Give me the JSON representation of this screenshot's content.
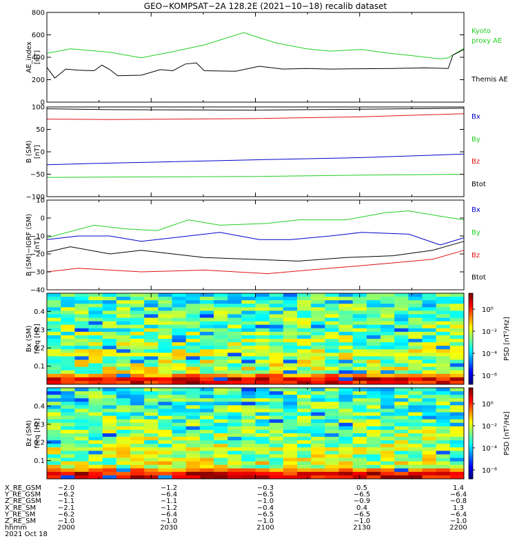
{
  "title": "GEO−KOMPSAT−2A 128.2E (2021−10−18) recalib dataset",
  "colors": {
    "kyoto": "#1fd11f",
    "themis": "#000000",
    "bx": "#0000c8",
    "by": "#1fd11f",
    "bz": "#e01010",
    "btot": "#000000"
  },
  "chart_data": [
    {
      "type": "line",
      "ylabel": [
        "AE_index",
        "[nT]"
      ],
      "ylim": [
        0,
        800
      ],
      "yticks": [
        "800",
        "600",
        "400",
        "200",
        "0"
      ],
      "x": [
        "2000",
        "2030",
        "2100",
        "2130",
        "2200"
      ],
      "series": [
        {
          "name": "Kyoto proxy AE",
          "label_lines": [
            "Kyoto",
            "proxy AE"
          ],
          "color": "#1fd11f",
          "points": [
            [
              0,
              435
            ],
            [
              15,
              475
            ],
            [
              40,
              445
            ],
            [
              60,
              395
            ],
            [
              80,
              450
            ],
            [
              100,
              510
            ],
            [
              125,
              620
            ],
            [
              145,
              530
            ],
            [
              165,
              475
            ],
            [
              180,
              455
            ],
            [
              200,
              470
            ],
            [
              215,
              440
            ],
            [
              235,
              410
            ],
            [
              250,
              385
            ],
            [
              255,
              395
            ],
            [
              265,
              480
            ]
          ]
        },
        {
          "name": "Themis AE",
          "label_lines": [
            "Themis AE"
          ],
          "color": "#000000",
          "points": [
            [
              0,
              310
            ],
            [
              5,
              215
            ],
            [
              12,
              295
            ],
            [
              20,
              285
            ],
            [
              30,
              280
            ],
            [
              35,
              330
            ],
            [
              40,
              290
            ],
            [
              45,
              235
            ],
            [
              60,
              240
            ],
            [
              72,
              290
            ],
            [
              80,
              280
            ],
            [
              88,
              340
            ],
            [
              95,
              350
            ],
            [
              100,
              280
            ],
            [
              120,
              275
            ],
            [
              135,
              320
            ],
            [
              150,
              295
            ],
            [
              165,
              300
            ],
            [
              180,
              295
            ],
            [
              200,
              298
            ],
            [
              220,
              300
            ],
            [
              240,
              305
            ],
            [
              255,
              300
            ],
            [
              258,
              420
            ],
            [
              265,
              470
            ]
          ]
        }
      ]
    },
    {
      "type": "line",
      "ylabel": [
        "B (SM)",
        "[nT]"
      ],
      "ylim": [
        -100,
        100
      ],
      "yticks": [
        "100",
        "50",
        "0",
        "−50",
        "−100"
      ],
      "series": [
        {
          "name": "Bx",
          "color": "#0000c8",
          "points": [
            [
              0,
              -29
            ],
            [
              30,
              -26
            ],
            [
              70,
              -23
            ],
            [
              130,
              -18
            ],
            [
              200,
              -13
            ],
            [
              265,
              -5
            ]
          ]
        },
        {
          "name": "By",
          "color": "#1fd11f",
          "points": [
            [
              0,
              -57
            ],
            [
              60,
              -56
            ],
            [
              130,
              -55
            ],
            [
              200,
              -52
            ],
            [
              265,
              -50
            ]
          ]
        },
        {
          "name": "Bz",
          "color": "#e01010",
          "points": [
            [
              0,
              73
            ],
            [
              40,
              72
            ],
            [
              130,
              74
            ],
            [
              200,
              78
            ],
            [
              265,
              85
            ]
          ]
        },
        {
          "name": "Btot",
          "color": "#000000",
          "points": [
            [
              0,
              96
            ],
            [
              40,
              94
            ],
            [
              130,
              93
            ],
            [
              200,
              95
            ],
            [
              265,
              97
            ]
          ]
        }
      ]
    },
    {
      "type": "line",
      "ylabel": [
        "B (SM)−IGRF (SM)",
        "[nT]"
      ],
      "ylim": [
        -40,
        10
      ],
      "yticks": [
        "10",
        "0",
        "−10",
        "−20",
        "−30",
        "−40"
      ],
      "series": [
        {
          "name": "Bx",
          "color": "#0000c8",
          "points": [
            [
              0,
              -12
            ],
            [
              20,
              -10
            ],
            [
              40,
              -10
            ],
            [
              60,
              -13
            ],
            [
              90,
              -10
            ],
            [
              110,
              -8
            ],
            [
              135,
              -12
            ],
            [
              155,
              -12
            ],
            [
              180,
              -10
            ],
            [
              200,
              -8
            ],
            [
              230,
              -9
            ],
            [
              250,
              -15
            ],
            [
              265,
              -11
            ]
          ]
        },
        {
          "name": "By",
          "color": "#1fd11f",
          "points": [
            [
              0,
              -11
            ],
            [
              30,
              -4
            ],
            [
              50,
              -6
            ],
            [
              70,
              -7
            ],
            [
              90,
              -1
            ],
            [
              110,
              -4
            ],
            [
              140,
              -3
            ],
            [
              160,
              -1
            ],
            [
              190,
              -1
            ],
            [
              215,
              3
            ],
            [
              230,
              4
            ],
            [
              250,
              1
            ],
            [
              265,
              -1
            ]
          ]
        },
        {
          "name": "Bz",
          "color": "#e01010",
          "points": [
            [
              0,
              -30
            ],
            [
              20,
              -28
            ],
            [
              60,
              -30
            ],
            [
              100,
              -29
            ],
            [
              140,
              -31
            ],
            [
              180,
              -28
            ],
            [
              220,
              -25
            ],
            [
              245,
              -23
            ],
            [
              265,
              -18
            ]
          ]
        },
        {
          "name": "Btot",
          "color": "#000000",
          "points": [
            [
              0,
              -19
            ],
            [
              15,
              -16
            ],
            [
              40,
              -20
            ],
            [
              60,
              -18
            ],
            [
              80,
              -20
            ],
            [
              100,
              -22
            ],
            [
              130,
              -23
            ],
            [
              160,
              -24
            ],
            [
              190,
              -22
            ],
            [
              220,
              -21
            ],
            [
              245,
              -18
            ],
            [
              265,
              -13
            ]
          ]
        }
      ]
    },
    {
      "type": "heatmap",
      "ylabel": [
        "Bx (SM)",
        "freq [Hz]"
      ],
      "ylim": [
        0,
        0.5
      ],
      "yticks": [
        "0.4",
        "0.3",
        "0.2",
        "0.1"
      ],
      "colorbar_label": "PSD [nT²/Hz]",
      "colorbar_ticks": [
        "10⁰",
        "10⁻²",
        "10⁻⁴",
        "10⁻⁶"
      ],
      "seed": 17
    },
    {
      "type": "heatmap",
      "ylabel": [
        "Bz (SM)",
        "freq [Hz]"
      ],
      "ylim": [
        0,
        0.5
      ],
      "yticks": [
        "0.4",
        "0.3",
        "0.2",
        "0.1"
      ],
      "colorbar_label": "PSD [nT²/Hz]",
      "colorbar_ticks": [
        "10⁰",
        "10⁻²",
        "10⁻⁴",
        "10⁻⁶"
      ],
      "seed": 91
    }
  ],
  "ephemeris": {
    "rows": [
      {
        "label": "X_RE_GSM",
        "values": [
          "−2.0",
          "−1.2",
          "−0.3",
          "0.5",
          "1.4"
        ]
      },
      {
        "label": "Y_RE_GSM",
        "values": [
          "−6.2",
          "−6.4",
          "−6.5",
          "−6.5",
          "−6.4"
        ]
      },
      {
        "label": "Z_RE_GSM",
        "values": [
          "−1.1",
          "−1.1",
          "−1.0",
          "−0.9",
          "−0.8"
        ]
      },
      {
        "label": "X_RE_SM",
        "values": [
          "−2.1",
          "−1.2",
          "−0.4",
          "0.4",
          "1.3"
        ]
      },
      {
        "label": "Y_RE_SM",
        "values": [
          "−6.2",
          "−6.4",
          "−6.5",
          "−6.5",
          "−6.4"
        ]
      },
      {
        "label": "Z_RE_SM",
        "values": [
          "−1.0",
          "−1.0",
          "−1.0",
          "−1.0",
          "−1.0"
        ]
      },
      {
        "label": "hhmm",
        "values": [
          "2000",
          "2030",
          "2100",
          "2130",
          "2200"
        ]
      }
    ],
    "date": "2021 Oct 18"
  }
}
